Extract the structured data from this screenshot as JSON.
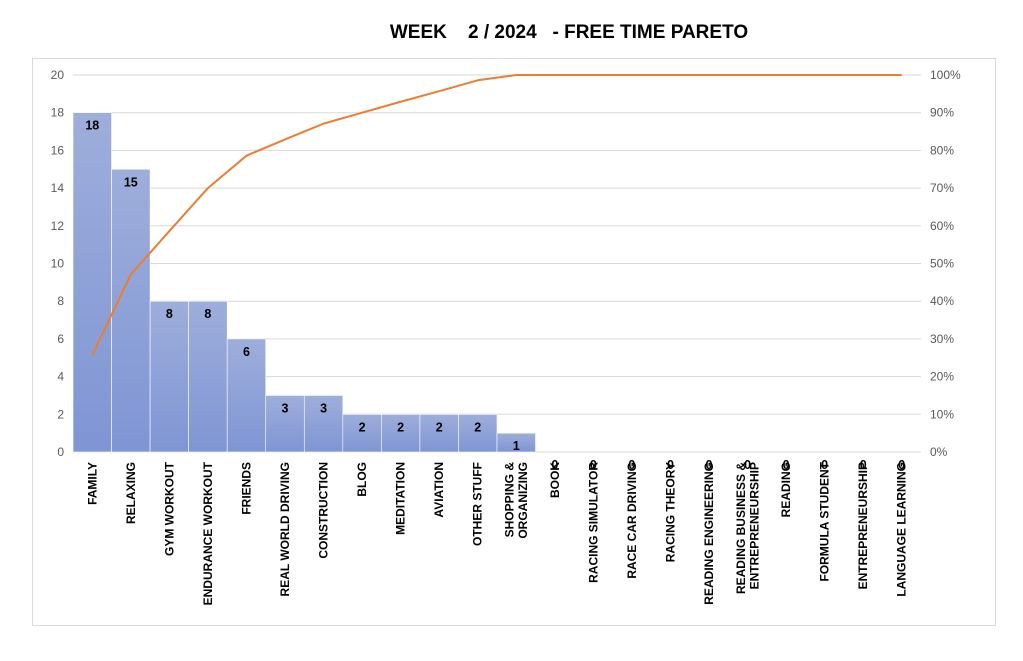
{
  "chart_data": {
    "type": "bar",
    "title": "WEEK    2 / 2024   - FREE TIME PARETO",
    "categories": [
      "FAMILY",
      "RELAXING",
      "GYM WORKOUT",
      "ENDURANCE WORKOUT",
      "FRIENDS",
      "REAL WORLD DRIVING",
      "CONSTRUCTION",
      "BLOG",
      "MEDITATION",
      "AVIATION",
      "OTHER STUFF",
      "SHOPPING & ORGANIZING",
      "BOOK",
      "RACING SIMULATOR",
      "RACE CAR DRIVING",
      "RACING THEORY",
      "READING ENGINEERING",
      "READING BUSINESS & ENTREPRENEURSHIP",
      "READING",
      "FORMULA STUDENT",
      "ENTREPRENEURSHIP",
      "LANGUAGE LEARNING"
    ],
    "category_lines": [
      [
        "FAMILY"
      ],
      [
        "RELAXING"
      ],
      [
        "GYM WORKOUT"
      ],
      [
        "ENDURANCE WORKOUT"
      ],
      [
        "FRIENDS"
      ],
      [
        "REAL WORLD DRIVING"
      ],
      [
        "CONSTRUCTION"
      ],
      [
        "BLOG"
      ],
      [
        "MEDITATION"
      ],
      [
        "AVIATION"
      ],
      [
        "OTHER STUFF"
      ],
      [
        "SHOPPING &",
        "ORGANIZING"
      ],
      [
        "BOOK"
      ],
      [
        "RACING SIMULATOR"
      ],
      [
        "RACE CAR DRIVING"
      ],
      [
        "RACING THEORY"
      ],
      [
        "READING ENGINEERING"
      ],
      [
        "READING BUSINESS &",
        "ENTREPRENEURSHIP"
      ],
      [
        "READING"
      ],
      [
        "FORMULA STUDENT"
      ],
      [
        "ENTREPRENEURSHIP"
      ],
      [
        "LANGUAGE LEARNING"
      ]
    ],
    "series": [
      {
        "type": "bar",
        "values": [
          18,
          15,
          8,
          8,
          6,
          3,
          3,
          2,
          2,
          2,
          2,
          1,
          0,
          0,
          0,
          0,
          0,
          0,
          0,
          0,
          0,
          0
        ]
      },
      {
        "type": "line",
        "axis": "right",
        "values": [
          25.7,
          47.1,
          58.6,
          70.0,
          78.6,
          82.9,
          87.1,
          90.0,
          92.9,
          95.7,
          98.6,
          100,
          100,
          100,
          100,
          100,
          100,
          100,
          100,
          100,
          100,
          100
        ]
      }
    ],
    "y_left": {
      "min": 0,
      "max": 20,
      "step": 2
    },
    "y_right": {
      "min": 0,
      "max": 100,
      "step": 10,
      "suffix": "%"
    },
    "grid": true,
    "legend": "none",
    "colors": {
      "bar_top": "#9eaedb",
      "bar_bottom": "#7f95d4",
      "line": "#ed7d31",
      "grid": "#d9d9d9"
    }
  }
}
